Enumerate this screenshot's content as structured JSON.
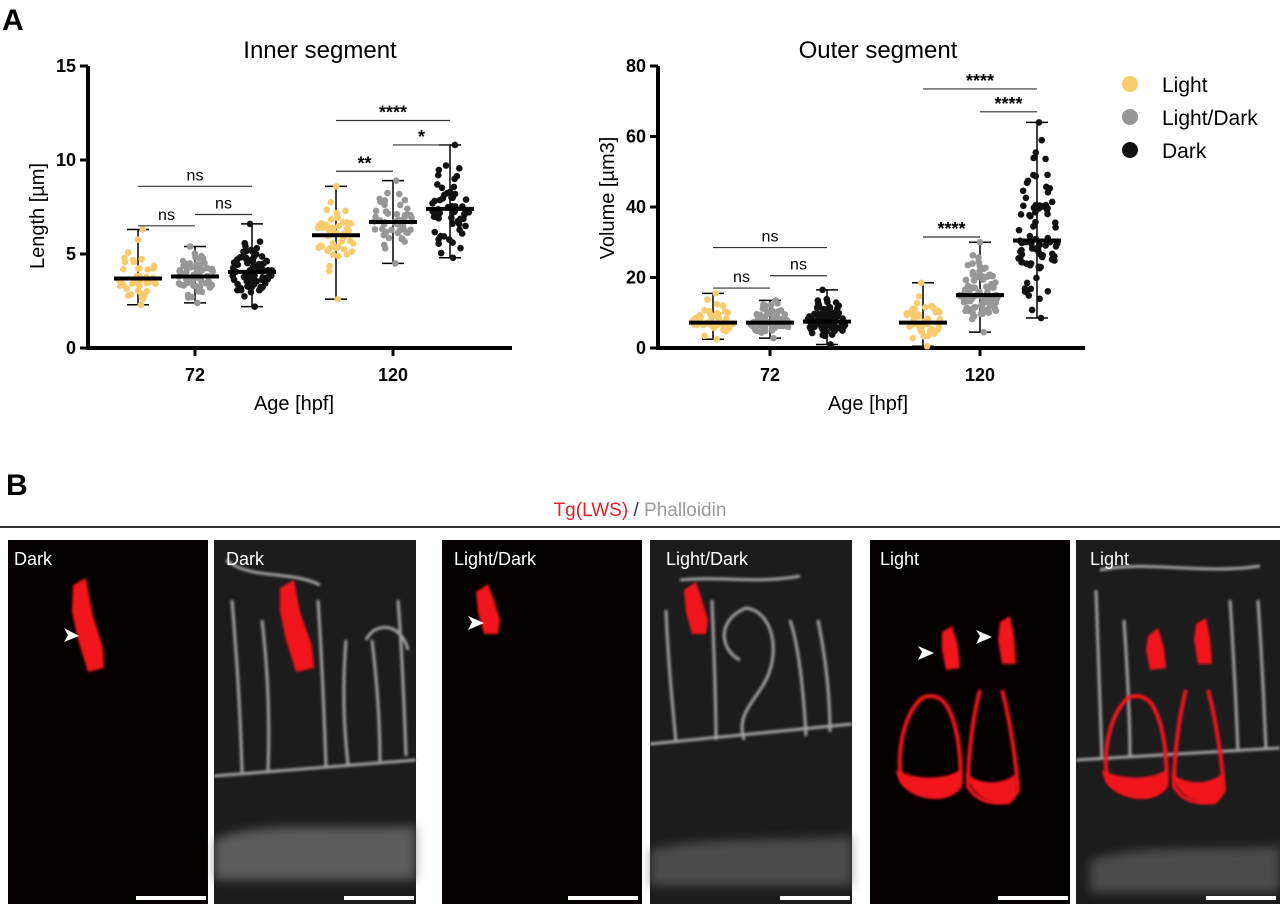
{
  "figure": {
    "panel_a_label": "A",
    "panel_b_label": "B"
  },
  "legend": [
    {
      "label": "Light",
      "color": "#F8CB6E"
    },
    {
      "label": "Light/Dark",
      "color": "#979797"
    },
    {
      "label": "Dark",
      "color": "#111111"
    }
  ],
  "chart_data": [
    {
      "type": "scatter",
      "title": "Inner segment",
      "xlabel": "Age [hpf]",
      "ylabel": "Length [µm]",
      "ylim": [
        0,
        15
      ],
      "yticks": [
        0,
        5,
        10,
        15
      ],
      "categories": [
        "72",
        "120"
      ],
      "groups": [
        {
          "category": "72",
          "series": "Light",
          "mean": 3.7,
          "min": 2.3,
          "max": 6.3,
          "n": 40
        },
        {
          "category": "72",
          "series": "Light/Dark",
          "mean": 3.8,
          "min": 2.4,
          "max": 5.4,
          "n": 55
        },
        {
          "category": "72",
          "series": "Dark",
          "mean": 4.05,
          "min": 2.2,
          "max": 6.6,
          "n": 85
        },
        {
          "category": "120",
          "series": "Light",
          "mean": 6.0,
          "min": 2.6,
          "max": 8.6,
          "n": 50
        },
        {
          "category": "120",
          "series": "Light/Dark",
          "mean": 6.7,
          "min": 4.5,
          "max": 8.9,
          "n": 50
        },
        {
          "category": "120",
          "series": "Dark",
          "mean": 7.4,
          "min": 4.8,
          "max": 10.8,
          "n": 60
        }
      ],
      "significance": [
        {
          "category": "72",
          "from": "Light",
          "to": "Light/Dark",
          "label": "ns",
          "y": 6.5
        },
        {
          "category": "72",
          "from": "Light/Dark",
          "to": "Dark",
          "label": "ns",
          "y": 7.1
        },
        {
          "category": "72",
          "from": "Light",
          "to": "Dark",
          "label": "ns",
          "y": 8.6
        },
        {
          "category": "120",
          "from": "Light",
          "to": "Light/Dark",
          "label": "**",
          "y": 9.4
        },
        {
          "category": "120",
          "from": "Light/Dark",
          "to": "Dark",
          "label": "*",
          "y": 10.8
        },
        {
          "category": "120",
          "from": "Light",
          "to": "Dark",
          "label": "****",
          "y": 12.1
        }
      ]
    },
    {
      "type": "scatter",
      "title": "Outer segment",
      "xlabel": "Age [hpf]",
      "ylabel": "Volume [µm3]",
      "ylim": [
        0,
        80
      ],
      "yticks": [
        0,
        20,
        40,
        60,
        80
      ],
      "categories": [
        "72",
        "120"
      ],
      "groups": [
        {
          "category": "72",
          "series": "Light",
          "mean": 7.2,
          "min": 2.5,
          "max": 15.5,
          "n": 45
        },
        {
          "category": "72",
          "series": "Light/Dark",
          "mean": 7.2,
          "min": 2.8,
          "max": 13.5,
          "n": 60
        },
        {
          "category": "72",
          "series": "Dark",
          "mean": 7.5,
          "min": 1.0,
          "max": 16.5,
          "n": 90
        },
        {
          "category": "120",
          "series": "Light",
          "mean": 7.2,
          "min": 0.5,
          "max": 18.5,
          "n": 45
        },
        {
          "category": "120",
          "series": "Light/Dark",
          "mean": 15.0,
          "min": 4.5,
          "max": 30.0,
          "n": 95
        },
        {
          "category": "120",
          "series": "Dark",
          "mean": 30.5,
          "min": 8.5,
          "max": 64.0,
          "n": 85
        }
      ],
      "significance": [
        {
          "category": "72",
          "from": "Light",
          "to": "Light/Dark",
          "label": "ns",
          "y": 17.0
        },
        {
          "category": "72",
          "from": "Light/Dark",
          "to": "Dark",
          "label": "ns",
          "y": 20.5
        },
        {
          "category": "72",
          "from": "Light",
          "to": "Dark",
          "label": "ns",
          "y": 28.5
        },
        {
          "category": "120",
          "from": "Light",
          "to": "Light/Dark",
          "label": "****",
          "y": 31.5
        },
        {
          "category": "120",
          "from": "Light/Dark",
          "to": "Dark",
          "label": "****",
          "y": 67.0
        },
        {
          "category": "120",
          "from": "Light",
          "to": "Dark",
          "label": "****",
          "y": 73.5
        }
      ]
    }
  ],
  "panel_b": {
    "stain": {
      "marker": "Tg(LWS)",
      "separator": " / ",
      "counter": "Phalloidin"
    },
    "images": [
      {
        "label": "Dark",
        "channel": "red"
      },
      {
        "label": "Dark",
        "channel": "merge"
      },
      {
        "label": "Light/Dark",
        "channel": "red"
      },
      {
        "label": "Light/Dark",
        "channel": "merge"
      },
      {
        "label": "Light",
        "channel": "red"
      },
      {
        "label": "Light",
        "channel": "merge"
      }
    ]
  }
}
